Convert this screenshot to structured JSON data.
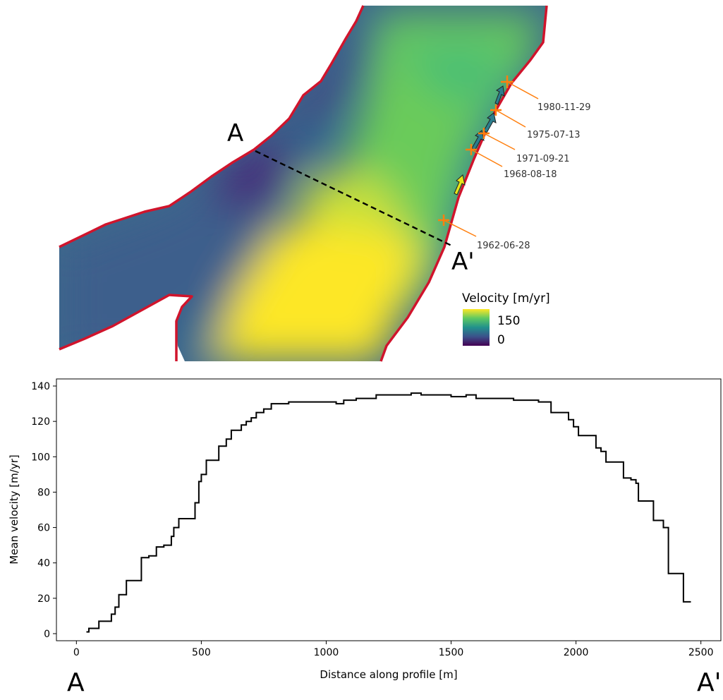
{
  "map": {
    "profile_start_label": "A",
    "profile_end_label": "A'",
    "legend": {
      "title": "Velocity [m/yr]",
      "max_label": "150",
      "min_label": "0",
      "max_value": 150,
      "min_value": 0,
      "colormap": [
        "#440154",
        "#3b528b",
        "#21918c",
        "#5ec962",
        "#fde725"
      ]
    },
    "colors": {
      "outline": "#d0142c",
      "marker": "#ff7f0e",
      "profile_line": "#000000",
      "arrow_early": "#e6e619",
      "arrow_late": "#2b7e8e"
    },
    "markers": [
      {
        "date": "1962-06-28"
      },
      {
        "date": "1968-08-18"
      },
      {
        "date": "1971-09-21"
      },
      {
        "date": "1975-07-13"
      },
      {
        "date": "1980-11-29"
      }
    ]
  },
  "chart_data": {
    "type": "line",
    "title": "",
    "xlabel": "Distance along profile [m]",
    "ylabel": "Mean velocity [m/yr]",
    "xlim": [
      -80,
      2580
    ],
    "ylim": [
      -4,
      144
    ],
    "xticks": [
      0,
      500,
      1000,
      1500,
      2000,
      2500
    ],
    "yticks": [
      0,
      20,
      40,
      60,
      80,
      100,
      120,
      140
    ],
    "step": "post",
    "grid": false,
    "start_label": "A",
    "end_label": "A'",
    "x": [
      40,
      50,
      90,
      140,
      155,
      170,
      200,
      260,
      290,
      320,
      350,
      380,
      390,
      410,
      440,
      475,
      490,
      500,
      520,
      540,
      570,
      600,
      620,
      640,
      660,
      680,
      700,
      720,
      750,
      780,
      820,
      850,
      880,
      920,
      950,
      980,
      1010,
      1040,
      1070,
      1120,
      1160,
      1200,
      1250,
      1300,
      1340,
      1380,
      1420,
      1460,
      1500,
      1530,
      1560,
      1600,
      1650,
      1700,
      1750,
      1800,
      1850,
      1880,
      1900,
      1940,
      1970,
      1990,
      2010,
      2040,
      2080,
      2100,
      2120,
      2150,
      2190,
      2220,
      2240,
      2250,
      2270,
      2310,
      2330,
      2350,
      2370,
      2400,
      2430,
      2460
    ],
    "y": [
      1,
      3,
      7,
      11,
      15,
      22,
      30,
      43,
      44,
      49,
      50,
      55,
      60,
      65,
      65,
      74,
      86,
      90,
      98,
      98,
      106,
      110,
      115,
      115,
      118,
      120,
      122,
      125,
      127,
      130,
      130,
      131,
      131,
      131,
      131,
      131,
      131,
      130,
      132,
      133,
      133,
      135,
      135,
      135,
      136,
      135,
      135,
      135,
      134,
      134,
      135,
      133,
      133,
      133,
      132,
      132,
      131,
      131,
      125,
      125,
      121,
      117,
      112,
      112,
      105,
      103,
      97,
      97,
      88,
      87,
      85,
      75,
      75,
      64,
      64,
      60,
      34,
      34,
      18,
      18
    ]
  }
}
